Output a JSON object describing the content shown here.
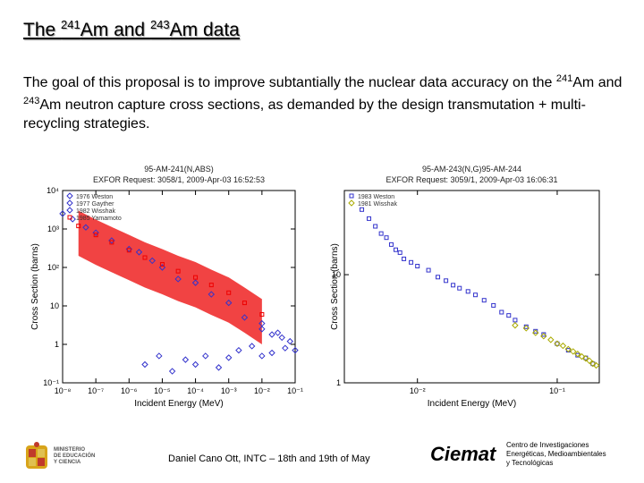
{
  "slide": {
    "title_parts": [
      "The ",
      "241",
      "Am and ",
      "243",
      "Am data"
    ],
    "body_parts": [
      "The goal of this proposal is to improve subtantially the nuclear data accuracy on the ",
      "241",
      "Am and ",
      "243",
      "Am neutron capture cross sections, as demanded by the design transmutation + multi-recycling strategies."
    ],
    "footer": "Daniel Cano Ott, INTC – 18th and 19th of May",
    "ciemat_logo": "Ciemat",
    "ciemat_subtitle": [
      "Centro de Investigaciones",
      "Energéticas, Medioambientales",
      "y Tecnológicas"
    ],
    "ministry_text": [
      "MINISTERIO",
      "DE EDUCACIÓN",
      "Y CIENCIA"
    ]
  },
  "chart_data": [
    {
      "type": "scatter",
      "title": "95-AM-241(N,ABS)",
      "subtitle": "EXFOR Request: 3058/1, 2009-Apr-03 16:52:53",
      "xlabel": "Incident Energy (MeV)",
      "ylabel": "Cross Section (barns)",
      "xscale": "log",
      "yscale": "log",
      "xlim": [
        1e-08,
        0.1
      ],
      "ylim": [
        0.1,
        10000.0
      ],
      "xticks": [
        "10⁻⁸",
        "10⁻⁷",
        "10⁻⁶",
        "10⁻⁵",
        "10⁻⁴",
        "10⁻³",
        "10⁻²",
        "10⁻¹"
      ],
      "yticks": [
        "10⁻¹",
        "1",
        "10",
        "10²",
        "10³",
        "10⁴"
      ],
      "legend_position": "top-left",
      "series": [
        {
          "name": "1976 Weston",
          "color": "#3333cc",
          "marker": "diamond",
          "points": [
            [
              1e-08,
              2500
            ],
            [
              2e-08,
              1800
            ],
            [
              5e-08,
              1100
            ],
            [
              1e-07,
              800
            ],
            [
              3e-07,
              500
            ],
            [
              1e-06,
              300
            ],
            [
              2e-06,
              250
            ],
            [
              5e-06,
              150
            ],
            [
              1e-05,
              100
            ],
            [
              3e-05,
              50
            ],
            [
              0.0001,
              40
            ],
            [
              0.0003,
              20
            ],
            [
              0.001,
              12
            ],
            [
              0.003,
              5
            ],
            [
              0.01,
              3.5
            ],
            [
              0.03,
              2
            ],
            [
              0.1,
              0.7
            ]
          ]
        },
        {
          "name": "1977 Gayther",
          "color": "#3333cc",
          "marker": "diamond",
          "points": [
            [
              3e-06,
              0.3
            ],
            [
              8e-06,
              0.5
            ],
            [
              2e-05,
              0.2
            ],
            [
              5e-05,
              0.4
            ],
            [
              0.0001,
              0.3
            ],
            [
              0.0002,
              0.5
            ],
            [
              0.0005,
              0.25
            ],
            [
              0.001,
              0.45
            ],
            [
              0.002,
              0.7
            ],
            [
              0.005,
              0.9
            ],
            [
              0.01,
              0.5
            ],
            [
              0.02,
              0.6
            ],
            [
              0.05,
              0.8
            ]
          ]
        },
        {
          "name": "1982 Wisshak",
          "color": "#3333cc",
          "marker": "diamond",
          "points": [
            [
              0.01,
              2.5
            ],
            [
              0.02,
              1.8
            ],
            [
              0.04,
              1.5
            ],
            [
              0.07,
              1.2
            ]
          ]
        },
        {
          "name": "1985 Yamamoto",
          "color": "#ee0000",
          "marker": "square",
          "points": [
            [
              3e-08,
              1200
            ],
            [
              1e-07,
              700
            ],
            [
              3e-07,
              450
            ],
            [
              1e-06,
              280
            ],
            [
              3e-06,
              180
            ],
            [
              1e-05,
              120
            ],
            [
              3e-05,
              80
            ],
            [
              0.0001,
              55
            ],
            [
              0.0003,
              35
            ],
            [
              0.001,
              22
            ],
            [
              0.003,
              12
            ],
            [
              0.01,
              6
            ]
          ]
        }
      ]
    },
    {
      "type": "scatter",
      "title": "95-AM-243(N,G)95-AM-244",
      "subtitle": "EXFOR Request: 3059/1, 2009-Apr-03 16:06:31",
      "xlabel": "Incident Energy (MeV)",
      "ylabel": "Cross Section (barns)",
      "xscale": "log",
      "yscale": "log",
      "xlim": [
        0.003,
        0.2
      ],
      "ylim": [
        1,
        60
      ],
      "xticks": [
        "10⁻²",
        "10⁻¹"
      ],
      "yticks": [
        "1",
        "10"
      ],
      "legend_position": "top-left",
      "series": [
        {
          "name": "1983 Weston",
          "color": "#3333cc",
          "marker": "square",
          "points": [
            [
              0.004,
              40
            ],
            [
              0.0045,
              33
            ],
            [
              0.005,
              28
            ],
            [
              0.0055,
              24
            ],
            [
              0.006,
              22
            ],
            [
              0.0065,
              19
            ],
            [
              0.007,
              17
            ],
            [
              0.0075,
              16
            ],
            [
              0.008,
              14
            ],
            [
              0.009,
              13
            ],
            [
              0.01,
              12
            ],
            [
              0.012,
              11
            ],
            [
              0.014,
              9.5
            ],
            [
              0.016,
              8.8
            ],
            [
              0.018,
              8
            ],
            [
              0.02,
              7.5
            ],
            [
              0.023,
              7
            ],
            [
              0.026,
              6.5
            ],
            [
              0.03,
              5.8
            ],
            [
              0.035,
              5.2
            ],
            [
              0.04,
              4.5
            ],
            [
              0.045,
              4.2
            ],
            [
              0.05,
              3.8
            ],
            [
              0.06,
              3.3
            ],
            [
              0.07,
              3.0
            ],
            [
              0.08,
              2.8
            ],
            [
              0.1,
              2.3
            ],
            [
              0.12,
              2.0
            ],
            [
              0.14,
              1.8
            ],
            [
              0.16,
              1.7
            ],
            [
              0.18,
              1.5
            ]
          ]
        },
        {
          "name": "1981 Wisshak",
          "color": "#aaaa00",
          "marker": "diamond",
          "points": [
            [
              0.05,
              3.4
            ],
            [
              0.06,
              3.2
            ],
            [
              0.07,
              2.9
            ],
            [
              0.08,
              2.7
            ],
            [
              0.09,
              2.5
            ],
            [
              0.1,
              2.3
            ],
            [
              0.11,
              2.2
            ],
            [
              0.12,
              2.05
            ],
            [
              0.13,
              1.95
            ],
            [
              0.14,
              1.85
            ],
            [
              0.15,
              1.75
            ],
            [
              0.16,
              1.68
            ],
            [
              0.17,
              1.6
            ],
            [
              0.18,
              1.5
            ],
            [
              0.19,
              1.45
            ]
          ]
        }
      ]
    }
  ]
}
